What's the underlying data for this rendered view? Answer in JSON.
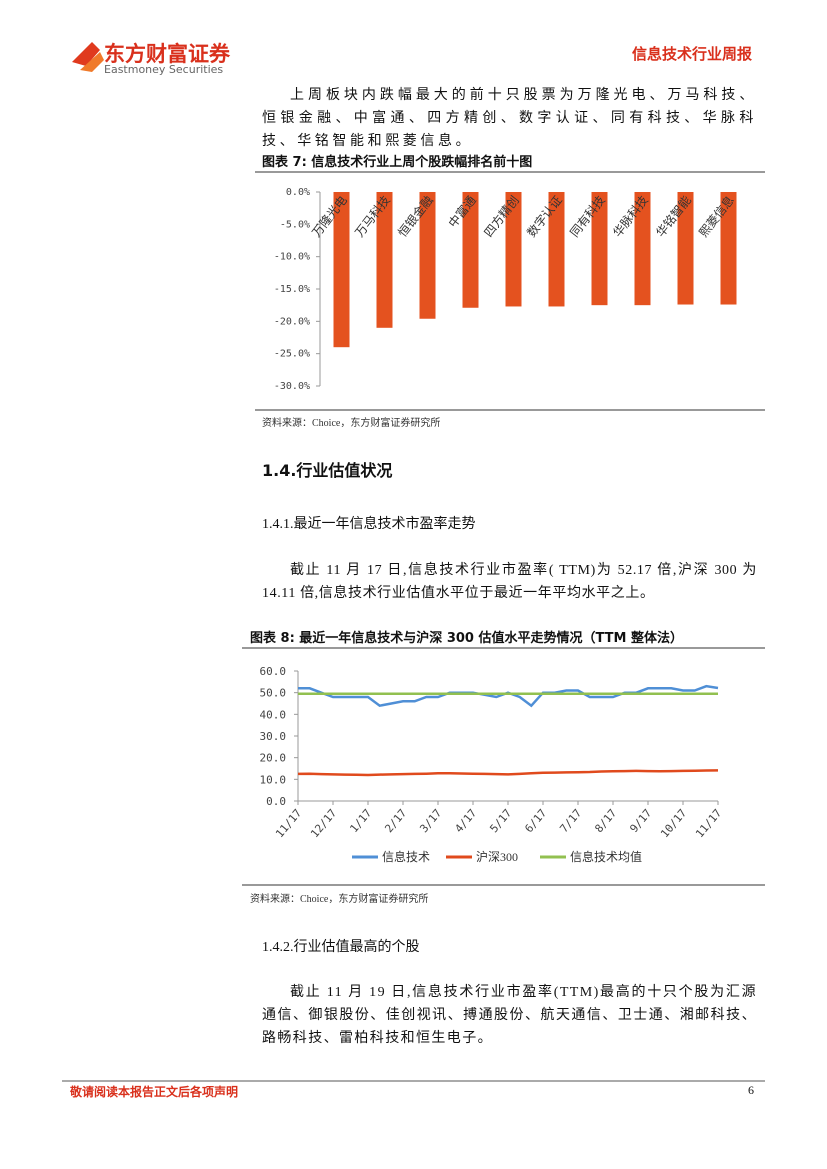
{
  "header": {
    "logo_cn": "东方财富证券",
    "logo_en": "Eastmoney Securities",
    "report_type": "信息技术行业周报"
  },
  "intro": "上周板块内跌幅最大的前十只股票为万隆光电、万马科技、恒银金融、中富通、四方精创、数字认证、同有科技、华脉科技、华铭智能和熙菱信息。",
  "section": {
    "title": "1.4.行业估值状况",
    "sub1": "1.4.1.最近一年信息技术市盈率走势",
    "sub1_text": "截止 11 月 17 日,信息技术行业市盈率( TTM)为 52.17 倍,沪深 300 为 14.11 倍,信息技术行业估值水平位于最近一年平均水平之上。",
    "sub2": "1.4.2.行业估值最高的个股",
    "sub2_text": "截止 11 月 19 日,信息技术行业市盈率(TTM)最高的十只个股为汇源通信、御银股份、佳创视讯、搏通股份、航天通信、卫士通、湘邮科技、路畅科技、雷柏科技和恒生电子。"
  },
  "chart_data": [
    {
      "type": "bar",
      "title": "图表 7: 信息技术行业上周个股跌幅排名前十图",
      "categories": [
        "万隆光电",
        "万马科技",
        "恒银金融",
        "中富通",
        "四方精创",
        "数字认证",
        "同有科技",
        "华脉科技",
        "华铭智能",
        "熙菱信息"
      ],
      "values": [
        -24.0,
        -21.0,
        -19.6,
        -17.9,
        -17.7,
        -17.7,
        -17.5,
        -17.5,
        -17.4,
        -17.4
      ],
      "color": "#e4521f",
      "ylim": [
        -30,
        0
      ],
      "yticks": [
        {
          "value": 0,
          "label": "0.0%"
        },
        {
          "value": -5,
          "label": "-5.0%"
        },
        {
          "value": -10,
          "label": "-10.0%"
        },
        {
          "value": -15,
          "label": "-15.0%"
        },
        {
          "value": -20,
          "label": "-20.0%"
        },
        {
          "value": -25,
          "label": "-25.0%"
        },
        {
          "value": -30,
          "label": "-30.0%"
        }
      ],
      "source": "资料来源：Choice，东方财富证券研究所"
    },
    {
      "type": "line",
      "title": "图表 8: 最近一年信息技术与沪深 300 估值水平走势情况（TTM 整体法）",
      "categories": [
        "11/17",
        null,
        null,
        "12/17",
        null,
        null,
        "1/17",
        null,
        null,
        "2/17",
        null,
        null,
        "3/17",
        null,
        null,
        "4/17",
        null,
        null,
        "5/17",
        null,
        null,
        "6/17",
        null,
        null,
        "7/17",
        null,
        null,
        "8/17",
        null,
        null,
        "9/17",
        null,
        null,
        "10/17",
        null,
        null,
        "11/17"
      ],
      "series": [
        {
          "name": "信息技术",
          "color": "#4f8fd6",
          "values": [
            52,
            52,
            50,
            48,
            48,
            48,
            48,
            44,
            45,
            46,
            46,
            48,
            48,
            50,
            50,
            50,
            49,
            48,
            50,
            48,
            44,
            50,
            50,
            51,
            51,
            48,
            48,
            48,
            50,
            50,
            52,
            52,
            52,
            51,
            51,
            53,
            52.17
          ]
        },
        {
          "name": "沪深300",
          "color": "#e04a1d",
          "values": [
            12.5,
            12.6,
            12.4,
            12.3,
            12.2,
            12.1,
            12.0,
            12.2,
            12.3,
            12.4,
            12.5,
            12.6,
            12.8,
            12.8,
            12.7,
            12.6,
            12.5,
            12.4,
            12.3,
            12.5,
            12.8,
            13.0,
            13.1,
            13.2,
            13.3,
            13.4,
            13.6,
            13.7,
            13.8,
            13.9,
            13.8,
            13.7,
            13.8,
            13.9,
            14.0,
            14.1,
            14.11
          ]
        },
        {
          "name": "信息技术均值",
          "color": "#92c050",
          "values": [
            49.5,
            49.5,
            49.5,
            49.5,
            49.5,
            49.5,
            49.5,
            49.5,
            49.5,
            49.5,
            49.5,
            49.5,
            49.5,
            49.5,
            49.5,
            49.5,
            49.5,
            49.5,
            49.5,
            49.5,
            49.5,
            49.5,
            49.5,
            49.5,
            49.5,
            49.5,
            49.5,
            49.5,
            49.5,
            49.5,
            49.5,
            49.5,
            49.5,
            49.5,
            49.5,
            49.5,
            49.5
          ]
        }
      ],
      "ylim": [
        0,
        60
      ],
      "yticks": [
        {
          "value": 0,
          "label": "0.0"
        },
        {
          "value": 10,
          "label": "10.0"
        },
        {
          "value": 20,
          "label": "20.0"
        },
        {
          "value": 30,
          "label": "30.0"
        },
        {
          "value": 40,
          "label": "40.0"
        },
        {
          "value": 50,
          "label": "50.0"
        },
        {
          "value": 60,
          "label": "60.0"
        }
      ],
      "source": "资料来源：Choice，东方财富证券研究所"
    }
  ],
  "footer": {
    "disclaimer": "敬请阅读本报告正文后各项声明",
    "page_number": "6"
  }
}
